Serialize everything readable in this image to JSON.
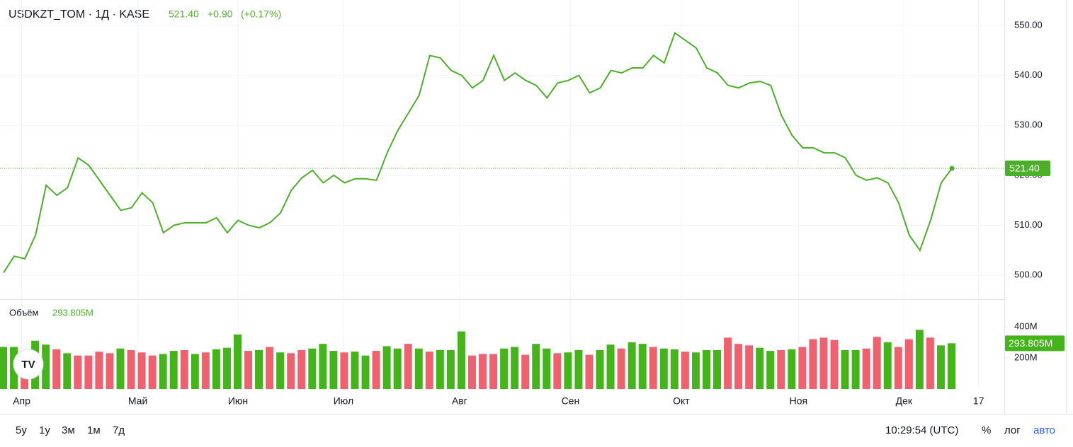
{
  "chart_data": [
    {
      "type": "line",
      "title": "USDKZT_TOM · 1Д · KASE",
      "last": "521.40",
      "change": "+0.90",
      "change_pct": "(+0.17%)",
      "xlim": [
        0,
        94
      ],
      "xticks": [
        {
          "value": 1.7,
          "label": "Апр"
        },
        {
          "value": 12.6,
          "label": "Май"
        },
        {
          "value": 22,
          "label": "Июн"
        },
        {
          "value": 31.9,
          "label": "Июл"
        },
        {
          "value": 42.8,
          "label": "Авг"
        },
        {
          "value": 53.2,
          "label": "Сен"
        },
        {
          "value": 63.6,
          "label": "Окт"
        },
        {
          "value": 74.6,
          "label": "Ноя"
        },
        {
          "value": 84.5,
          "label": "Дек"
        },
        {
          "value": 91.5,
          "label": "17"
        }
      ],
      "ylim": [
        495.2,
        555.1
      ],
      "yticks": [
        {
          "value": 500,
          "label": "500.00"
        },
        {
          "value": 510,
          "label": "510.00"
        },
        {
          "value": 520,
          "label": "520.00"
        },
        {
          "value": 530,
          "label": "530.00"
        },
        {
          "value": 540,
          "label": "540.00"
        },
        {
          "value": 550,
          "label": "550.00"
        }
      ],
      "grid": true,
      "series": [
        {
          "color": "#4caf28",
          "values": [
            500.5,
            503.8,
            503.3,
            508,
            518,
            516,
            517.5,
            523.5,
            522,
            519,
            516,
            513,
            513.5,
            516.5,
            514.5,
            508.5,
            510,
            510.5,
            510.5,
            510.5,
            511.5,
            508.5,
            511,
            510,
            509.5,
            510.5,
            512.5,
            517,
            519.5,
            521,
            518.5,
            520,
            518.5,
            519.3,
            519.3,
            519,
            524.5,
            529,
            532.5,
            536,
            544,
            543.5,
            541,
            540,
            537.5,
            539,
            544,
            539,
            540.5,
            539,
            538,
            535.5,
            538.5,
            539,
            540,
            536.5,
            537.5,
            541,
            540.5,
            541.5,
            541.5,
            544,
            542.5,
            548.5,
            547,
            545.5,
            541.5,
            540.5,
            538,
            537.5,
            538.5,
            538.8,
            538,
            532,
            528,
            525.5,
            525.5,
            524.5,
            524.5,
            523.5,
            520,
            519,
            519.5,
            518.5,
            514.5,
            508,
            505,
            511,
            518.5,
            521.4
          ]
        }
      ]
    },
    {
      "type": "bar",
      "ylim": [
        0,
        568
      ],
      "yticks": [
        {
          "value": 200,
          "label": "200M"
        },
        {
          "value": 400,
          "label": "400M"
        }
      ],
      "series": [
        {
          "name": "Объём",
          "current_label": "293.805M",
          "values": [
            270,
            270,
            245,
            310,
            285,
            255,
            230,
            215,
            215,
            240,
            230,
            260,
            250,
            235,
            215,
            225,
            245,
            250,
            225,
            235,
            255,
            265,
            350,
            245,
            250,
            270,
            235,
            230,
            250,
            260,
            290,
            245,
            235,
            240,
            215,
            245,
            275,
            260,
            290,
            260,
            240,
            250,
            250,
            370,
            215,
            225,
            225,
            260,
            270,
            220,
            290,
            260,
            230,
            235,
            250,
            220,
            250,
            285,
            260,
            300,
            290,
            270,
            260,
            255,
            240,
            235,
            250,
            250,
            330,
            290,
            280,
            265,
            245,
            250,
            255,
            270,
            320,
            330,
            315,
            250,
            250,
            260,
            335,
            300,
            270,
            320,
            380,
            330,
            280,
            293.805
          ],
          "colors": [
            "#43b51a",
            "#43b51a",
            "#f0616f",
            "#43b51a",
            "#43b51a",
            "#f0616f",
            "#43b51a",
            "#f0616f",
            "#f0616f",
            "#f0616f",
            "#f0616f",
            "#43b51a",
            "#f0616f",
            "#f0616f",
            "#f0616f",
            "#43b51a",
            "#43b51a",
            "#f0616f",
            "#43b51a",
            "#f0616f",
            "#43b51a",
            "#43b51a",
            "#43b51a",
            "#f0616f",
            "#43b51a",
            "#f0616f",
            "#43b51a",
            "#f0616f",
            "#f0616f",
            "#43b51a",
            "#43b51a",
            "#43b51a",
            "#f0616f",
            "#43b51a",
            "#43b51a",
            "#f0616f",
            "#43b51a",
            "#43b51a",
            "#f0616f",
            "#43b51a",
            "#f0616f",
            "#43b51a",
            "#43b51a",
            "#43b51a",
            "#f0616f",
            "#f0616f",
            "#f0616f",
            "#43b51a",
            "#43b51a",
            "#f0616f",
            "#43b51a",
            "#43b51a",
            "#f0616f",
            "#43b51a",
            "#43b51a",
            "#f0616f",
            "#43b51a",
            "#43b51a",
            "#f0616f",
            "#43b51a",
            "#43b51a",
            "#f0616f",
            "#43b51a",
            "#43b51a",
            "#f0616f",
            "#43b51a",
            "#43b51a",
            "#43b51a",
            "#f0616f",
            "#f0616f",
            "#f0616f",
            "#43b51a",
            "#43b51a",
            "#f0616f",
            "#43b51a",
            "#f0616f",
            "#f0616f",
            "#f0616f",
            "#f0616f",
            "#43b51a",
            "#43b51a",
            "#f0616f",
            "#f0616f",
            "#43b51a",
            "#f0616f",
            "#f0616f",
            "#43b51a",
            "#f0616f",
            "#43b51a",
            "#43b51a"
          ]
        }
      ]
    }
  ],
  "toolbar": {
    "ranges": [
      "5y",
      "1y",
      "3м",
      "1м",
      "7д"
    ],
    "time": "10:29:54 (UTC)",
    "percent": "%",
    "log": "лог",
    "auto": "авто"
  }
}
